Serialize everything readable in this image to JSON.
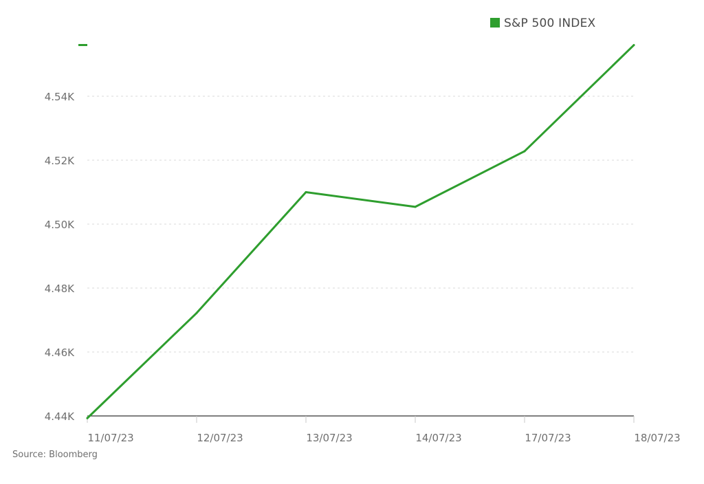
{
  "chart_data": {
    "type": "line",
    "title": "",
    "xlabel": "",
    "ylabel": "",
    "categories": [
      "11/07/23",
      "12/07/23",
      "13/07/23",
      "14/07/23",
      "17/07/23",
      "18/07/23"
    ],
    "series": [
      {
        "name": "S&P 500 INDEX",
        "color": "#2e9e2e",
        "values": [
          4439.3,
          4472.2,
          4510.0,
          4505.4,
          4522.8,
          4556.0
        ]
      }
    ],
    "ylim": [
      4440,
      4560
    ],
    "yticks": [
      4440,
      4460,
      4480,
      4500,
      4520,
      4540
    ],
    "ytick_labels": [
      "4.44K",
      "4.46K",
      "4.48K",
      "4.50K",
      "4.52K",
      "4.54K"
    ],
    "grid": true,
    "legend_position": "top-right"
  },
  "source": "Source: Bloomberg"
}
